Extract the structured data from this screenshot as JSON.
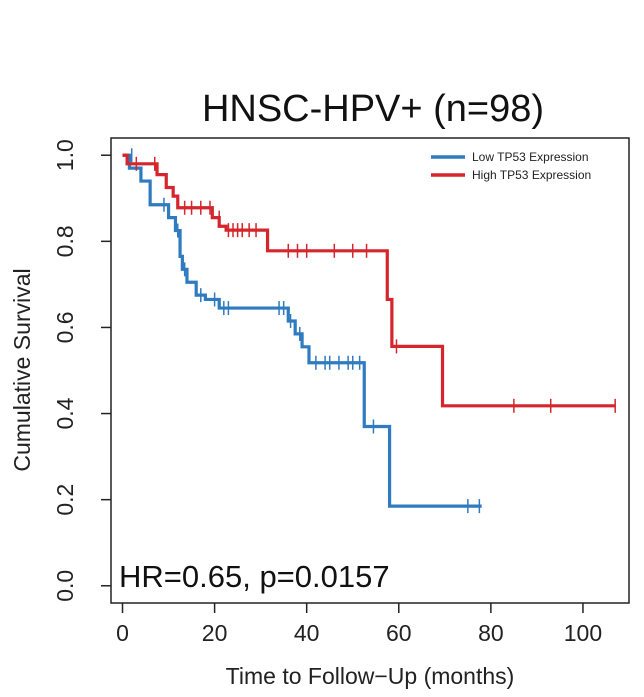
{
  "chart_data": {
    "type": "line",
    "title": "HNSC-HPV+ (n=98)",
    "xlabel": "Time to Follow−Up (months)",
    "ylabel": "Cumulative Survival",
    "xlim": [
      -2.5,
      110
    ],
    "ylim": [
      -0.04,
      1.04
    ],
    "x_ticks": [
      0,
      20,
      40,
      60,
      80,
      100
    ],
    "x_tick_labels": [
      "0",
      "20",
      "40",
      "60",
      "80",
      "100"
    ],
    "y_ticks": [
      0.0,
      0.2,
      0.4,
      0.6,
      0.8,
      1.0
    ],
    "y_tick_labels": [
      "0.0",
      "0.2",
      "0.4",
      "0.6",
      "0.8",
      "1.0"
    ],
    "grid": false,
    "legend_position": "top-right",
    "annotation": "HR=0.65, p=0.0157",
    "series": [
      {
        "name": "Low TP53 Expression",
        "color": "#2f7bbf",
        "steps": [
          [
            0,
            1.0
          ],
          [
            1.5,
            1.0
          ],
          [
            1.5,
            0.97
          ],
          [
            4,
            0.97
          ],
          [
            4,
            0.94
          ],
          [
            6,
            0.94
          ],
          [
            6,
            0.885
          ],
          [
            10,
            0.885
          ],
          [
            10,
            0.855
          ],
          [
            11.5,
            0.855
          ],
          [
            11.5,
            0.825
          ],
          [
            12.5,
            0.825
          ],
          [
            12.5,
            0.765
          ],
          [
            13,
            0.765
          ],
          [
            13,
            0.735
          ],
          [
            14,
            0.735
          ],
          [
            14,
            0.705
          ],
          [
            16,
            0.705
          ],
          [
            16,
            0.675
          ],
          [
            18,
            0.675
          ],
          [
            18,
            0.665
          ],
          [
            21,
            0.665
          ],
          [
            21,
            0.645
          ],
          [
            36,
            0.645
          ],
          [
            36,
            0.615
          ],
          [
            37.5,
            0.615
          ],
          [
            37.5,
            0.585
          ],
          [
            39,
            0.585
          ],
          [
            39,
            0.555
          ],
          [
            40.5,
            0.555
          ],
          [
            40.5,
            0.518
          ],
          [
            52.5,
            0.518
          ],
          [
            52.5,
            0.37
          ],
          [
            58,
            0.37
          ],
          [
            58,
            0.185
          ],
          [
            78,
            0.185
          ]
        ],
        "censor_x": [
          2,
          9,
          12,
          13.5,
          17,
          20,
          22,
          23,
          34,
          35,
          36.5,
          38.5,
          42,
          44,
          45,
          47,
          49,
          50,
          51.5,
          54.5,
          75,
          77.5
        ],
        "censor_y": [
          1.0,
          0.885,
          0.825,
          0.735,
          0.675,
          0.665,
          0.645,
          0.645,
          0.645,
          0.645,
          0.615,
          0.585,
          0.518,
          0.518,
          0.518,
          0.518,
          0.518,
          0.518,
          0.518,
          0.37,
          0.185,
          0.185
        ]
      },
      {
        "name": "High TP53 Expression",
        "color": "#d4262c",
        "steps": [
          [
            0,
            1.0
          ],
          [
            1,
            1.0
          ],
          [
            1,
            0.98
          ],
          [
            7.5,
            0.98
          ],
          [
            7.5,
            0.955
          ],
          [
            9.5,
            0.955
          ],
          [
            9.5,
            0.925
          ],
          [
            11,
            0.925
          ],
          [
            11,
            0.905
          ],
          [
            12,
            0.905
          ],
          [
            12,
            0.878
          ],
          [
            19.5,
            0.878
          ],
          [
            19.5,
            0.855
          ],
          [
            21,
            0.855
          ],
          [
            21,
            0.835
          ],
          [
            22.5,
            0.835
          ],
          [
            22.5,
            0.826
          ],
          [
            31.5,
            0.826
          ],
          [
            31.5,
            0.778
          ],
          [
            57.5,
            0.778
          ],
          [
            57.5,
            0.665
          ],
          [
            58.5,
            0.665
          ],
          [
            58.5,
            0.556
          ],
          [
            69.5,
            0.556
          ],
          [
            69.5,
            0.418
          ],
          [
            107,
            0.418
          ]
        ],
        "censor_x": [
          3,
          7,
          13.5,
          15,
          17,
          19,
          21,
          23,
          24,
          25,
          26,
          27.5,
          29,
          36,
          38,
          40,
          46,
          50,
          53,
          59.5,
          85,
          93,
          107
        ],
        "censor_y": [
          0.98,
          0.98,
          0.878,
          0.878,
          0.878,
          0.878,
          0.855,
          0.826,
          0.826,
          0.826,
          0.826,
          0.826,
          0.826,
          0.778,
          0.778,
          0.778,
          0.778,
          0.778,
          0.778,
          0.556,
          0.418,
          0.418,
          0.418
        ]
      }
    ]
  }
}
